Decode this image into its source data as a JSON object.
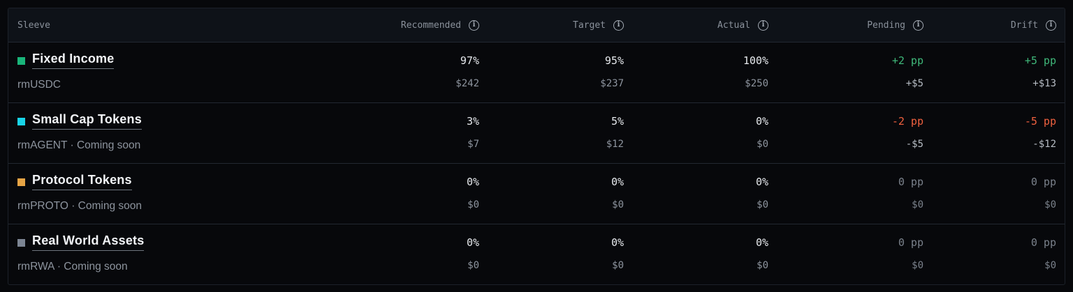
{
  "headers": {
    "sleeve": "Sleeve",
    "recommended": "Recommended",
    "target": "Target",
    "actual": "Actual",
    "pending": "Pending",
    "drift": "Drift",
    "info_icon": "i"
  },
  "rows": [
    {
      "name": "Fixed Income",
      "sub": "rmUSDC",
      "color": "#19b57a",
      "recommended_pct": "97%",
      "recommended_usd": "$242",
      "target_pct": "95%",
      "target_usd": "$237",
      "actual_pct": "100%",
      "actual_usd": "$250",
      "pending_pp": "+2 pp",
      "pending_usd": "+$5",
      "drift_pp": "+5 pp",
      "drift_usd": "+$13"
    },
    {
      "name": "Small Cap Tokens",
      "sub": "rmAGENT · Coming soon",
      "color": "#18d4e8",
      "recommended_pct": "3%",
      "recommended_usd": "$7",
      "target_pct": "5%",
      "target_usd": "$12",
      "actual_pct": "0%",
      "actual_usd": "$0",
      "pending_pp": "-2 pp",
      "pending_usd": "-$5",
      "drift_pp": "-5 pp",
      "drift_usd": "-$12"
    },
    {
      "name": "Protocol Tokens",
      "sub": "rmPROTO · Coming soon",
      "color": "#e6a445",
      "recommended_pct": "0%",
      "recommended_usd": "$0",
      "target_pct": "0%",
      "target_usd": "$0",
      "actual_pct": "0%",
      "actual_usd": "$0",
      "pending_pp": "0 pp",
      "pending_usd": "$0",
      "drift_pp": "0 pp",
      "drift_usd": "$0"
    },
    {
      "name": "Real World Assets",
      "sub": "rmRWA · Coming soon",
      "color": "#7c8593",
      "recommended_pct": "0%",
      "recommended_usd": "$0",
      "target_pct": "0%",
      "target_usd": "$0",
      "actual_pct": "0%",
      "actual_usd": "$0",
      "pending_pp": "0 pp",
      "pending_usd": "$0",
      "drift_pp": "0 pp",
      "drift_usd": "$0"
    }
  ]
}
